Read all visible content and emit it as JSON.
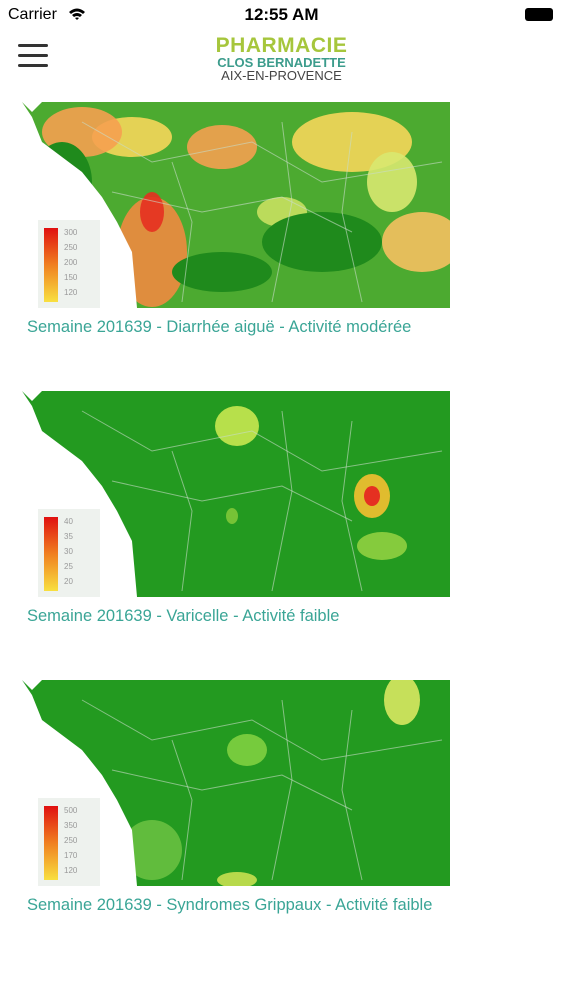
{
  "status_bar": {
    "carrier": "Carrier",
    "time": "12:55 AM"
  },
  "header": {
    "logo": [
      "PHARMACIE",
      "CLOS BERNADETTE",
      "AIX-EN-PROVENCE"
    ]
  },
  "items": [
    {
      "caption": "Semaine 201639 - Diarrhée aiguë - Activité modérée",
      "legend": [
        "300",
        "250",
        "200",
        "150",
        "120"
      ]
    },
    {
      "caption": "Semaine 201639 - Varicelle - Activité faible",
      "legend": [
        "40",
        "35",
        "30",
        "25",
        "20"
      ]
    },
    {
      "caption": "Semaine 201639 - Syndromes Grippaux - Activité faible",
      "legend": [
        "500",
        "350",
        "250",
        "170",
        "120"
      ]
    }
  ]
}
